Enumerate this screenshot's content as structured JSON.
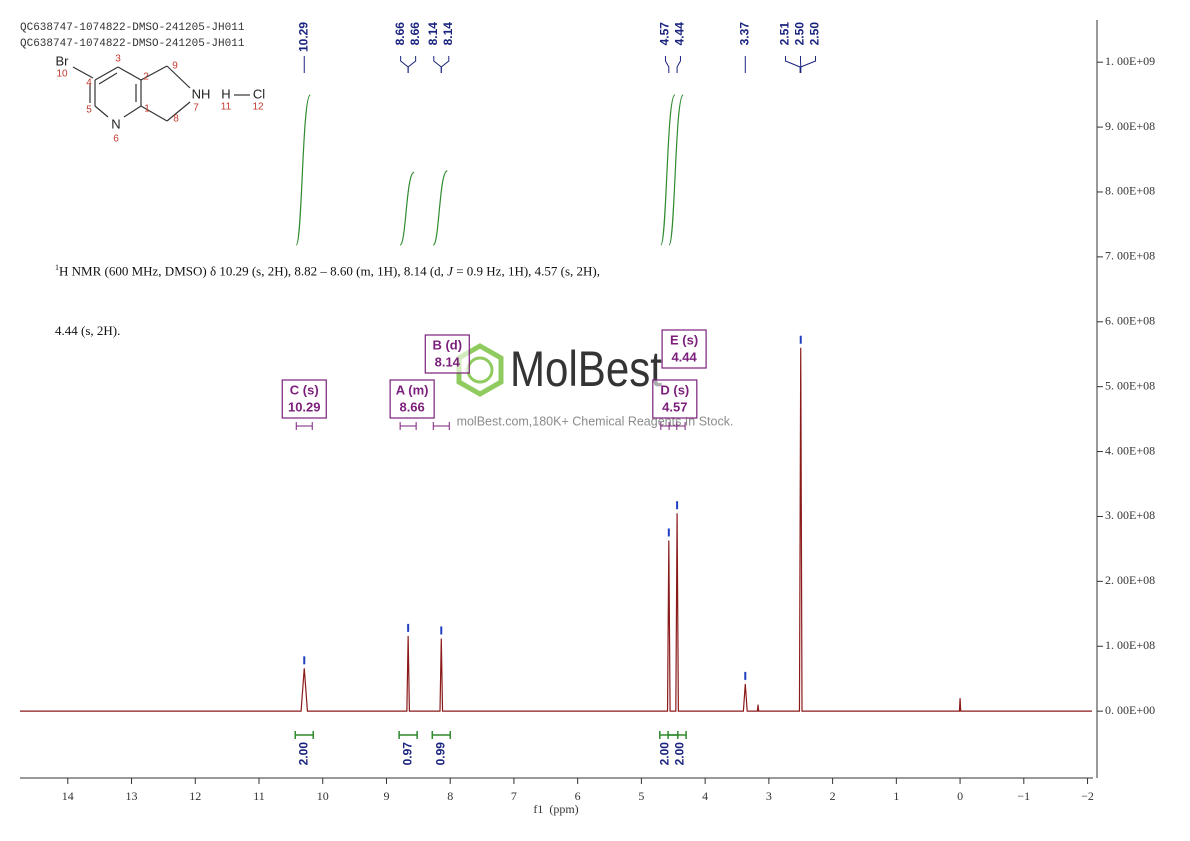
{
  "chart_data": {
    "type": "line",
    "header": [
      "QC638747-1074822-DMSO-241205-JH011",
      "QC638747-1074822-DMSO-241205-JH011"
    ],
    "xlabel": "f1  (ppm)",
    "xlim": [
      14.75,
      -2.07
    ],
    "xticks": [
      14,
      13,
      12,
      11,
      10,
      9,
      8,
      7,
      6,
      5,
      4,
      3,
      2,
      1,
      0,
      {
        "value": -1,
        "label": "−1"
      },
      {
        "value": -2,
        "label": "−2"
      }
    ],
    "ylim": [
      -103000000,
      1065000000
    ],
    "yticks": [
      {
        "value": 0,
        "label": "0. 00E+00"
      },
      {
        "value": 100000000,
        "label": "1. 00E+08"
      },
      {
        "value": 200000000,
        "label": "2. 00E+08"
      },
      {
        "value": 300000000,
        "label": "3. 00E+08"
      },
      {
        "value": 400000000,
        "label": "4. 00E+08"
      },
      {
        "value": 500000000,
        "label": "5. 00E+08"
      },
      {
        "value": 600000000,
        "label": "6. 00E+08"
      },
      {
        "value": 700000000,
        "label": "7. 00E+08"
      },
      {
        "value": 800000000,
        "label": "8. 00E+08"
      },
      {
        "value": 900000000,
        "label": "9. 00E+08"
      },
      {
        "value": 1000000000,
        "label": "1. 00E+09"
      }
    ],
    "color": "#8b1a1a",
    "x": [
      14.75,
      10.34,
      10.29,
      10.24,
      8.68,
      8.66,
      8.64,
      8.16,
      8.14,
      8.12,
      4.59,
      4.57,
      4.55,
      4.46,
      4.44,
      4.42,
      3.4,
      3.37,
      3.34,
      3.18,
      3.17,
      3.16,
      2.52,
      2.5,
      2.48,
      0.01,
      0,
      -0.01,
      -2.07
    ],
    "values": [
      0,
      0,
      66000000,
      0,
      0,
      116000000,
      0,
      0,
      112000000,
      0,
      0,
      263000000,
      0,
      0,
      305000000,
      0,
      0,
      42000000,
      0,
      0,
      10000000,
      0,
      0,
      560000000,
      0,
      0,
      20000000,
      0,
      0
    ],
    "peaks": [
      {
        "value": 10.29,
        "label": "10.29"
      },
      {
        "value": 8.66,
        "label": "8.66"
      },
      {
        "value": 8.66,
        "label": "8.66"
      },
      {
        "value": 8.14,
        "label": "8.14"
      },
      {
        "value": 8.14,
        "label": "8.14"
      },
      {
        "value": 4.57,
        "label": "4.57"
      },
      {
        "value": 4.44,
        "label": "4.44"
      },
      {
        "value": 3.37,
        "label": "3.37"
      },
      {
        "value": 2.51,
        "label": "2.51"
      },
      {
        "value": 2.5,
        "label": "2.50"
      },
      {
        "value": 2.5,
        "label": "2.50"
      }
    ],
    "integrals": [
      {
        "x": 10.29,
        "value": 2,
        "label": "2.00"
      },
      {
        "x": 8.66,
        "value": 0.97,
        "label": "0.97"
      },
      {
        "x": 8.14,
        "value": 0.99,
        "label": "0.99"
      },
      {
        "x": 4.57,
        "value": 2,
        "label": "2.00"
      },
      {
        "x": 4.44,
        "value": 2,
        "label": "2.00"
      }
    ],
    "multiplets": [
      {
        "label": "C (s)",
        "shift": {
          "value": 10.29,
          "label": "10.29"
        }
      },
      {
        "label": "A (m)",
        "shift": {
          "value": 8.66,
          "label": "8.66"
        }
      },
      {
        "label": "B (d)",
        "shift": {
          "value": 8.14,
          "label": "8.14"
        }
      },
      {
        "label": "E (s)",
        "shift": {
          "value": 4.44,
          "label": "4.44"
        }
      },
      {
        "label": "D (s)",
        "shift": {
          "value": 4.57,
          "label": "4.57"
        }
      }
    ],
    "description": [
      "1",
      "H NMR (600 MHz, DMSO) δ 10.29 (s, 2H), 8.82 – 8.60 (m, 1H), 8.14 (d, ",
      "J",
      " = 0.9 Hz, 1H), 4.57 (s, 2H),",
      "4.44 (s, 2H)."
    ],
    "structure": {
      "labels": [
        "Br",
        "N",
        "NH",
        "H",
        "Cl"
      ],
      "numbers": [
        "10",
        "4",
        "3",
        "2",
        "9",
        "7",
        "11",
        "12",
        "5",
        "1",
        "8",
        "6"
      ]
    },
    "watermark": {
      "brand": "MolBest",
      "tagline": "molBest.com,180K+ Chemical Reagents In Stock."
    }
  }
}
